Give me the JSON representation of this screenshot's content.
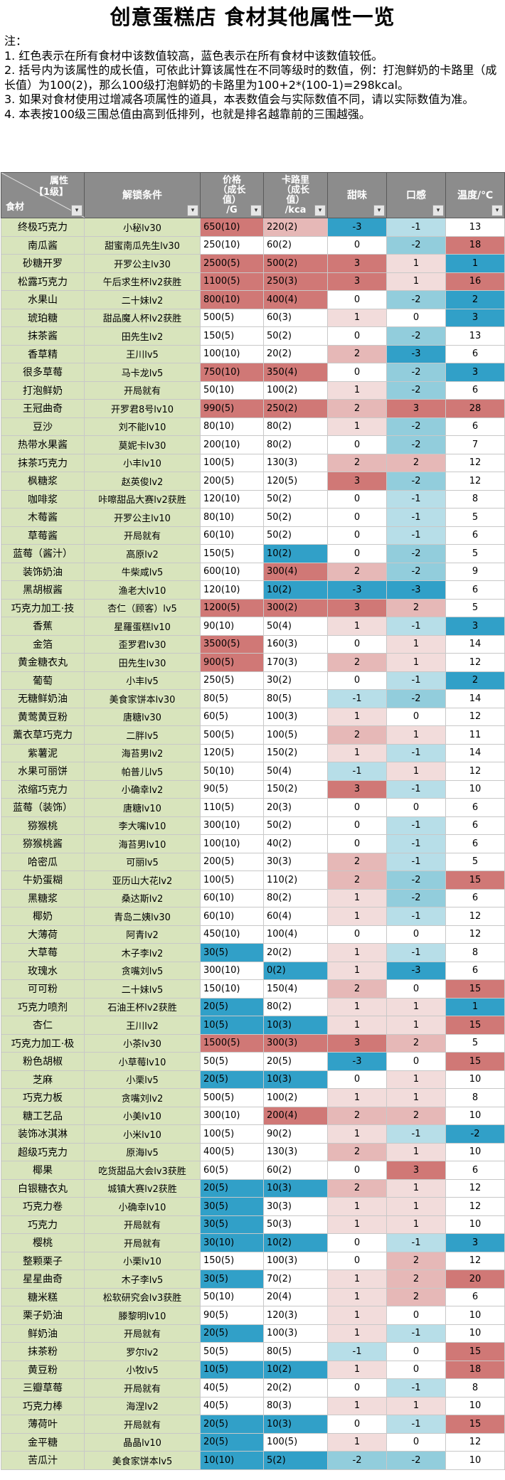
{
  "title": "创意蛋糕店  食材其他属性一览",
  "notes": [
    "注：",
    "1. 红色表示在所有食材中该数值较高，蓝色表示在所有食材中该数值较低。",
    "2. 括号内为该属性的成长值，可依此计算该属性在不同等级时的数值，例：打泡鲜奶的卡路里（成长值）为100(2)，那么100级打泡鲜奶的卡路里为100+2*(100-1)=298kcal。",
    "3. 如果对食材使用过增减各项属性的道具，本表数值会与实际数值不同，请以实际数值为准。",
    "4. 本表按100级三围总值由高到低排列，也就是排名越靠前的三围越强。"
  ],
  "header": {
    "corner_top": "属性\n【1级】",
    "corner_bottom": "食材",
    "cond": "解锁条件",
    "price": "价格\n（成长\n值）\n/G",
    "cal": "卡路里\n（成长\n值）\n/kca",
    "sweet": "甜味",
    "taste": "口感",
    "temp": "温度/℃",
    "dropdown": "▾"
  },
  "colors": {
    "w": "#ffffff",
    "r1": "#f2dcdb",
    "r2": "#e6b8b7",
    "r3": "#d07876",
    "b1": "#b7dee8",
    "b2": "#92cddc",
    "b3": "#31a0c8"
  },
  "rows": [
    {
      "name": "终极巧克力",
      "cond": "小秘lv30",
      "price": "650(10)",
      "pc": "r3",
      "cal": "220(2)",
      "cc": "r2",
      "sweet": "-3",
      "sc": "b3",
      "taste": "-1",
      "tc": "b1",
      "temp": "13",
      "mc": "w"
    },
    {
      "name": "南瓜酱",
      "cond": "甜蜜南瓜先生lv30",
      "price": "250(10)",
      "pc": "w",
      "cal": "60(2)",
      "cc": "w",
      "sweet": "0",
      "sc": "w",
      "taste": "-2",
      "tc": "b2",
      "temp": "18",
      "mc": "r3"
    },
    {
      "name": "砂糖开罗",
      "cond": "开罗公主lv30",
      "price": "2500(5)",
      "pc": "r3",
      "cal": "500(2)",
      "cc": "r3",
      "sweet": "3",
      "sc": "r3",
      "taste": "1",
      "tc": "r1",
      "temp": "1",
      "mc": "b3"
    },
    {
      "name": "松露巧克力",
      "cond": "午后求生杯lv2获胜",
      "price": "1100(5)",
      "pc": "r3",
      "cal": "250(3)",
      "cc": "r3",
      "sweet": "3",
      "sc": "r3",
      "taste": "1",
      "tc": "r1",
      "temp": "16",
      "mc": "r3"
    },
    {
      "name": "水果山",
      "cond": "二十妹lv2",
      "price": "800(10)",
      "pc": "r3",
      "cal": "400(4)",
      "cc": "r3",
      "sweet": "0",
      "sc": "w",
      "taste": "-2",
      "tc": "b2",
      "temp": "2",
      "mc": "b3"
    },
    {
      "name": "琥珀糖",
      "cond": "甜品魔人杯lv2获胜",
      "price": "500(5)",
      "pc": "w",
      "cal": "60(3)",
      "cc": "w",
      "sweet": "1",
      "sc": "r1",
      "taste": "0",
      "tc": "w",
      "temp": "3",
      "mc": "b3"
    },
    {
      "name": "抹茶酱",
      "cond": "田先生lv2",
      "price": "150(5)",
      "pc": "w",
      "cal": "50(2)",
      "cc": "w",
      "sweet": "0",
      "sc": "w",
      "taste": "-2",
      "tc": "b2",
      "temp": "13",
      "mc": "w"
    },
    {
      "name": "香草精",
      "cond": "王川lv5",
      "price": "100(10)",
      "pc": "w",
      "cal": "20(2)",
      "cc": "w",
      "sweet": "2",
      "sc": "r2",
      "taste": "-3",
      "tc": "b3",
      "temp": "6",
      "mc": "w"
    },
    {
      "name": "很多草莓",
      "cond": "马卡龙lv5",
      "price": "750(10)",
      "pc": "r3",
      "cal": "350(4)",
      "cc": "r3",
      "sweet": "0",
      "sc": "w",
      "taste": "-2",
      "tc": "b2",
      "temp": "3",
      "mc": "b3"
    },
    {
      "name": "打泡鲜奶",
      "cond": "开局就有",
      "price": "50(10)",
      "pc": "w",
      "cal": "100(2)",
      "cc": "w",
      "sweet": "1",
      "sc": "r1",
      "taste": "-2",
      "tc": "b2",
      "temp": "6",
      "mc": "w"
    },
    {
      "name": "王冠曲奇",
      "cond": "开罗君8号lv10",
      "price": "990(5)",
      "pc": "r3",
      "cal": "250(2)",
      "cc": "r3",
      "sweet": "2",
      "sc": "r2",
      "taste": "3",
      "tc": "r3",
      "temp": "28",
      "mc": "r3"
    },
    {
      "name": "豆沙",
      "cond": "刘不能lv10",
      "price": "80(10)",
      "pc": "w",
      "cal": "80(2)",
      "cc": "w",
      "sweet": "1",
      "sc": "r1",
      "taste": "-2",
      "tc": "b2",
      "temp": "6",
      "mc": "w"
    },
    {
      "name": "热带水果酱",
      "cond": "莫妮卡lv30",
      "price": "200(10)",
      "pc": "w",
      "cal": "80(2)",
      "cc": "w",
      "sweet": "0",
      "sc": "w",
      "taste": "-2",
      "tc": "b2",
      "temp": "7",
      "mc": "w"
    },
    {
      "name": "抹茶巧克力",
      "cond": "小丰lv10",
      "price": "100(5)",
      "pc": "w",
      "cal": "130(3)",
      "cc": "w",
      "sweet": "2",
      "sc": "r2",
      "taste": "2",
      "tc": "r2",
      "temp": "12",
      "mc": "w"
    },
    {
      "name": "枫糖浆",
      "cond": "赵英俊lv2",
      "price": "200(5)",
      "pc": "w",
      "cal": "120(5)",
      "cc": "w",
      "sweet": "3",
      "sc": "r3",
      "taste": "-2",
      "tc": "b2",
      "temp": "12",
      "mc": "w"
    },
    {
      "name": "咖啡浆",
      "cond": "咔嚓甜品大赛lv2获胜",
      "price": "120(10)",
      "pc": "w",
      "cal": "50(2)",
      "cc": "w",
      "sweet": "0",
      "sc": "w",
      "taste": "-1",
      "tc": "b1",
      "temp": "8",
      "mc": "w"
    },
    {
      "name": "木莓酱",
      "cond": "开罗公主lv10",
      "price": "80(10)",
      "pc": "w",
      "cal": "50(2)",
      "cc": "w",
      "sweet": "0",
      "sc": "w",
      "taste": "-1",
      "tc": "b1",
      "temp": "5",
      "mc": "w"
    },
    {
      "name": "草莓酱",
      "cond": "开局就有",
      "price": "60(10)",
      "pc": "w",
      "cal": "50(2)",
      "cc": "w",
      "sweet": "0",
      "sc": "w",
      "taste": "-1",
      "tc": "b1",
      "temp": "6",
      "mc": "w"
    },
    {
      "name": "蓝莓（酱汁）",
      "cond": "高原lv2",
      "price": "150(5)",
      "pc": "w",
      "cal": "10(2)",
      "cc": "b3",
      "sweet": "0",
      "sc": "w",
      "taste": "-2",
      "tc": "b2",
      "temp": "5",
      "mc": "w"
    },
    {
      "name": "装饰奶油",
      "cond": "牛柴咸lv5",
      "price": "600(10)",
      "pc": "w",
      "cal": "300(4)",
      "cc": "r3",
      "sweet": "2",
      "sc": "r2",
      "taste": "-2",
      "tc": "b2",
      "temp": "9",
      "mc": "w"
    },
    {
      "name": "黑胡椒酱",
      "cond": "渔老大lv10",
      "price": "120(10)",
      "pc": "w",
      "cal": "10(2)",
      "cc": "b3",
      "sweet": "-3",
      "sc": "b3",
      "taste": "-3",
      "tc": "b3",
      "temp": "6",
      "mc": "w"
    },
    {
      "name": "巧克力加工·技",
      "cond": "杏仁（顾客）lv5",
      "price": "1200(5)",
      "pc": "r3",
      "cal": "300(2)",
      "cc": "r3",
      "sweet": "3",
      "sc": "r3",
      "taste": "2",
      "tc": "r2",
      "temp": "5",
      "mc": "w"
    },
    {
      "name": "香蕉",
      "cond": "星羅蛋糕lv10",
      "price": "90(10)",
      "pc": "w",
      "cal": "50(4)",
      "cc": "w",
      "sweet": "1",
      "sc": "r1",
      "taste": "-1",
      "tc": "b1",
      "temp": "3",
      "mc": "b3"
    },
    {
      "name": "金箔",
      "cond": "歪罗君lv30",
      "price": "3500(5)",
      "pc": "r3",
      "cal": "160(3)",
      "cc": "w",
      "sweet": "0",
      "sc": "w",
      "taste": "1",
      "tc": "r1",
      "temp": "14",
      "mc": "w"
    },
    {
      "name": "黄金糖衣丸",
      "cond": "田先生lv30",
      "price": "900(5)",
      "pc": "r3",
      "cal": "170(3)",
      "cc": "w",
      "sweet": "2",
      "sc": "r2",
      "taste": "1",
      "tc": "r1",
      "temp": "12",
      "mc": "w"
    },
    {
      "name": "葡萄",
      "cond": "小丰lv5",
      "price": "250(5)",
      "pc": "w",
      "cal": "30(2)",
      "cc": "w",
      "sweet": "0",
      "sc": "w",
      "taste": "-1",
      "tc": "b1",
      "temp": "2",
      "mc": "b3"
    },
    {
      "name": "无糖鲜奶油",
      "cond": "美食家饼本lv30",
      "price": "80(5)",
      "pc": "w",
      "cal": "80(5)",
      "cc": "w",
      "sweet": "-1",
      "sc": "b1",
      "taste": "-2",
      "tc": "b2",
      "temp": "14",
      "mc": "w"
    },
    {
      "name": "黄莺黄豆粉",
      "cond": "唐糖lv30",
      "price": "60(5)",
      "pc": "w",
      "cal": "100(3)",
      "cc": "w",
      "sweet": "1",
      "sc": "r1",
      "taste": "0",
      "tc": "w",
      "temp": "12",
      "mc": "w"
    },
    {
      "name": "薰衣草巧克力",
      "cond": "二胖lv5",
      "price": "500(5)",
      "pc": "w",
      "cal": "100(5)",
      "cc": "w",
      "sweet": "2",
      "sc": "r2",
      "taste": "1",
      "tc": "r1",
      "temp": "11",
      "mc": "w"
    },
    {
      "name": "紫薯泥",
      "cond": "海苔男lv2",
      "price": "120(5)",
      "pc": "w",
      "cal": "150(2)",
      "cc": "w",
      "sweet": "1",
      "sc": "r1",
      "taste": "-1",
      "tc": "b1",
      "temp": "14",
      "mc": "w"
    },
    {
      "name": "水果可丽饼",
      "cond": "帕普儿lv5",
      "price": "50(10)",
      "pc": "w",
      "cal": "50(4)",
      "cc": "w",
      "sweet": "-1",
      "sc": "b1",
      "taste": "1",
      "tc": "r1",
      "temp": "12",
      "mc": "w"
    },
    {
      "name": "浓缩巧克力",
      "cond": "小确幸lv2",
      "price": "90(5)",
      "pc": "w",
      "cal": "150(2)",
      "cc": "w",
      "sweet": "3",
      "sc": "r3",
      "taste": "-1",
      "tc": "b1",
      "temp": "10",
      "mc": "w"
    },
    {
      "name": "蓝莓（装饰）",
      "cond": "唐糖lv10",
      "price": "110(5)",
      "pc": "w",
      "cal": "20(3)",
      "cc": "w",
      "sweet": "0",
      "sc": "w",
      "taste": "0",
      "tc": "w",
      "temp": "6",
      "mc": "w"
    },
    {
      "name": "猕猴桃",
      "cond": "李大嘴lv10",
      "price": "300(10)",
      "pc": "w",
      "cal": "50(2)",
      "cc": "w",
      "sweet": "0",
      "sc": "w",
      "taste": "-1",
      "tc": "b1",
      "temp": "6",
      "mc": "w"
    },
    {
      "name": "猕猴桃酱",
      "cond": "海苔男lv10",
      "price": "100(10)",
      "pc": "w",
      "cal": "40(2)",
      "cc": "w",
      "sweet": "0",
      "sc": "w",
      "taste": "-1",
      "tc": "b1",
      "temp": "6",
      "mc": "w"
    },
    {
      "name": "哈密瓜",
      "cond": "可丽lv5",
      "price": "200(5)",
      "pc": "w",
      "cal": "30(3)",
      "cc": "w",
      "sweet": "2",
      "sc": "r2",
      "taste": "-1",
      "tc": "b1",
      "temp": "5",
      "mc": "w"
    },
    {
      "name": "牛奶蛋糊",
      "cond": "亚历山大花lv2",
      "price": "100(5)",
      "pc": "w",
      "cal": "110(2)",
      "cc": "w",
      "sweet": "2",
      "sc": "r2",
      "taste": "-2",
      "tc": "b2",
      "temp": "15",
      "mc": "r3"
    },
    {
      "name": "黑糖浆",
      "cond": "桑达斯lv2",
      "price": "60(10)",
      "pc": "w",
      "cal": "80(2)",
      "cc": "w",
      "sweet": "1",
      "sc": "r1",
      "taste": "-2",
      "tc": "b2",
      "temp": "6",
      "mc": "w"
    },
    {
      "name": "椰奶",
      "cond": "青岛二姨lv30",
      "price": "60(10)",
      "pc": "w",
      "cal": "60(4)",
      "cc": "w",
      "sweet": "1",
      "sc": "r1",
      "taste": "-1",
      "tc": "b1",
      "temp": "12",
      "mc": "w"
    },
    {
      "name": "大薄荷",
      "cond": "阿青lv2",
      "price": "450(10)",
      "pc": "w",
      "cal": "100(4)",
      "cc": "w",
      "sweet": "0",
      "sc": "w",
      "taste": "0",
      "tc": "w",
      "temp": "12",
      "mc": "w"
    },
    {
      "name": "大草莓",
      "cond": "木子李lv2",
      "price": "30(5)",
      "pc": "b3",
      "cal": "20(2)",
      "cc": "w",
      "sweet": "1",
      "sc": "r1",
      "taste": "-1",
      "tc": "b1",
      "temp": "8",
      "mc": "w"
    },
    {
      "name": "玫瑰水",
      "cond": "贪嘴刘lv5",
      "price": "300(10)",
      "pc": "w",
      "cal": "0(2)",
      "cc": "b3",
      "sweet": "1",
      "sc": "r1",
      "taste": "-3",
      "tc": "b3",
      "temp": "6",
      "mc": "w"
    },
    {
      "name": "可可粉",
      "cond": "二十妹lv5",
      "price": "150(10)",
      "pc": "w",
      "cal": "150(4)",
      "cc": "w",
      "sweet": "2",
      "sc": "r2",
      "taste": "0",
      "tc": "w",
      "temp": "15",
      "mc": "r3"
    },
    {
      "name": "巧克力喷剂",
      "cond": "石油王杯lv2获胜",
      "price": "20(5)",
      "pc": "b3",
      "cal": "80(2)",
      "cc": "w",
      "sweet": "1",
      "sc": "r1",
      "taste": "1",
      "tc": "r1",
      "temp": "1",
      "mc": "b3"
    },
    {
      "name": "杏仁",
      "cond": "王川lv2",
      "price": "10(5)",
      "pc": "b3",
      "cal": "10(3)",
      "cc": "b3",
      "sweet": "1",
      "sc": "r1",
      "taste": "1",
      "tc": "r1",
      "temp": "15",
      "mc": "r3"
    },
    {
      "name": "巧克力加工·极",
      "cond": "小茶lv30",
      "price": "1500(5)",
      "pc": "r3",
      "cal": "300(3)",
      "cc": "r3",
      "sweet": "3",
      "sc": "r3",
      "taste": "2",
      "tc": "r2",
      "temp": "5",
      "mc": "w"
    },
    {
      "name": "粉色胡椒",
      "cond": "小草莓lv10",
      "price": "50(5)",
      "pc": "w",
      "cal": "20(5)",
      "cc": "w",
      "sweet": "-3",
      "sc": "b3",
      "taste": "0",
      "tc": "w",
      "temp": "15",
      "mc": "r3"
    },
    {
      "name": "芝麻",
      "cond": "小栗lv5",
      "price": "20(5)",
      "pc": "b3",
      "cal": "10(3)",
      "cc": "b3",
      "sweet": "0",
      "sc": "w",
      "taste": "1",
      "tc": "r1",
      "temp": "10",
      "mc": "w"
    },
    {
      "name": "巧克力板",
      "cond": "贪嘴刘lv2",
      "price": "500(5)",
      "pc": "w",
      "cal": "100(2)",
      "cc": "w",
      "sweet": "1",
      "sc": "r1",
      "taste": "1",
      "tc": "r1",
      "temp": "8",
      "mc": "w"
    },
    {
      "name": "糖工艺品",
      "cond": "小美lv10",
      "price": "300(10)",
      "pc": "w",
      "cal": "200(4)",
      "cc": "r3",
      "sweet": "2",
      "sc": "r2",
      "taste": "2",
      "tc": "r2",
      "temp": "10",
      "mc": "w"
    },
    {
      "name": "装饰冰淇淋",
      "cond": "小米lv10",
      "price": "100(5)",
      "pc": "w",
      "cal": "90(2)",
      "cc": "w",
      "sweet": "1",
      "sc": "r1",
      "taste": "-1",
      "tc": "b1",
      "temp": "-2",
      "mc": "b3"
    },
    {
      "name": "超级巧克力",
      "cond": "原海lv5",
      "price": "400(5)",
      "pc": "w",
      "cal": "130(3)",
      "cc": "w",
      "sweet": "2",
      "sc": "r2",
      "taste": "1",
      "tc": "r1",
      "temp": "10",
      "mc": "w"
    },
    {
      "name": "椰果",
      "cond": "吃货甜品大会lv3获胜",
      "price": "60(5)",
      "pc": "w",
      "cal": "60(2)",
      "cc": "w",
      "sweet": "0",
      "sc": "w",
      "taste": "3",
      "tc": "r3",
      "temp": "6",
      "mc": "w"
    },
    {
      "name": "白银糖衣丸",
      "cond": "城镇大赛lv2获胜",
      "price": "20(5)",
      "pc": "b3",
      "cal": "10(3)",
      "cc": "b3",
      "sweet": "2",
      "sc": "r2",
      "taste": "1",
      "tc": "r1",
      "temp": "12",
      "mc": "w"
    },
    {
      "name": "巧克力卷",
      "cond": "小确幸lv10",
      "price": "30(5)",
      "pc": "b3",
      "cal": "30(3)",
      "cc": "w",
      "sweet": "1",
      "sc": "r1",
      "taste": "1",
      "tc": "r1",
      "temp": "12",
      "mc": "w"
    },
    {
      "name": "巧克力",
      "cond": "开局就有",
      "price": "30(5)",
      "pc": "b3",
      "cal": "50(3)",
      "cc": "w",
      "sweet": "1",
      "sc": "r1",
      "taste": "1",
      "tc": "r1",
      "temp": "10",
      "mc": "w"
    },
    {
      "name": "樱桃",
      "cond": "开局就有",
      "price": "30(10)",
      "pc": "b3",
      "cal": "10(2)",
      "cc": "b3",
      "sweet": "0",
      "sc": "w",
      "taste": "-1",
      "tc": "b1",
      "temp": "3",
      "mc": "b3"
    },
    {
      "name": "整颗栗子",
      "cond": "小栗lv10",
      "price": "150(5)",
      "pc": "w",
      "cal": "100(3)",
      "cc": "w",
      "sweet": "0",
      "sc": "w",
      "taste": "2",
      "tc": "r2",
      "temp": "12",
      "mc": "w"
    },
    {
      "name": "星星曲奇",
      "cond": "木子李lv5",
      "price": "30(5)",
      "pc": "b3",
      "cal": "70(2)",
      "cc": "w",
      "sweet": "1",
      "sc": "r1",
      "taste": "2",
      "tc": "r2",
      "temp": "20",
      "mc": "r3"
    },
    {
      "name": "糖米糕",
      "cond": "松软研究会lv3获胜",
      "price": "50(10)",
      "pc": "w",
      "cal": "20(4)",
      "cc": "w",
      "sweet": "1",
      "sc": "r1",
      "taste": "2",
      "tc": "r2",
      "temp": "6",
      "mc": "w"
    },
    {
      "name": "栗子奶油",
      "cond": "滕黎明lv10",
      "price": "90(5)",
      "pc": "w",
      "cal": "120(3)",
      "cc": "w",
      "sweet": "1",
      "sc": "r1",
      "taste": "0",
      "tc": "w",
      "temp": "10",
      "mc": "w"
    },
    {
      "name": "鲜奶油",
      "cond": "开局就有",
      "price": "20(5)",
      "pc": "b3",
      "cal": "100(3)",
      "cc": "w",
      "sweet": "1",
      "sc": "r1",
      "taste": "-1",
      "tc": "b1",
      "temp": "10",
      "mc": "w"
    },
    {
      "name": "抹茶粉",
      "cond": "罗尔lv2",
      "price": "50(5)",
      "pc": "w",
      "cal": "80(5)",
      "cc": "w",
      "sweet": "-1",
      "sc": "b1",
      "taste": "0",
      "tc": "w",
      "temp": "15",
      "mc": "r3"
    },
    {
      "name": "黄豆粉",
      "cond": "小牧lv5",
      "price": "10(5)",
      "pc": "b3",
      "cal": "10(2)",
      "cc": "b3",
      "sweet": "1",
      "sc": "r1",
      "taste": "0",
      "tc": "w",
      "temp": "18",
      "mc": "r3"
    },
    {
      "name": "三瓣草莓",
      "cond": "开局就有",
      "price": "40(5)",
      "pc": "w",
      "cal": "20(2)",
      "cc": "w",
      "sweet": "0",
      "sc": "w",
      "taste": "-1",
      "tc": "b1",
      "temp": "8",
      "mc": "w"
    },
    {
      "name": "巧克力棒",
      "cond": "海涅lv2",
      "price": "40(5)",
      "pc": "w",
      "cal": "80(3)",
      "cc": "w",
      "sweet": "1",
      "sc": "r1",
      "taste": "1",
      "tc": "r1",
      "temp": "10",
      "mc": "w"
    },
    {
      "name": "薄荷叶",
      "cond": "开局就有",
      "price": "20(5)",
      "pc": "b3",
      "cal": "10(3)",
      "cc": "b3",
      "sweet": "0",
      "sc": "w",
      "taste": "-1",
      "tc": "b1",
      "temp": "15",
      "mc": "r3"
    },
    {
      "name": "金平糖",
      "cond": "晶晶lv10",
      "price": "20(5)",
      "pc": "b3",
      "cal": "100(5)",
      "cc": "w",
      "sweet": "1",
      "sc": "r1",
      "taste": "0",
      "tc": "w",
      "temp": "12",
      "mc": "w"
    },
    {
      "name": "苦瓜汁",
      "cond": "美食家饼本lv5",
      "price": "10(10)",
      "pc": "b3",
      "cal": "5(2)",
      "cc": "b3",
      "sweet": "-2",
      "sc": "b2",
      "taste": "-2",
      "tc": "b2",
      "temp": "10",
      "mc": "w"
    }
  ]
}
